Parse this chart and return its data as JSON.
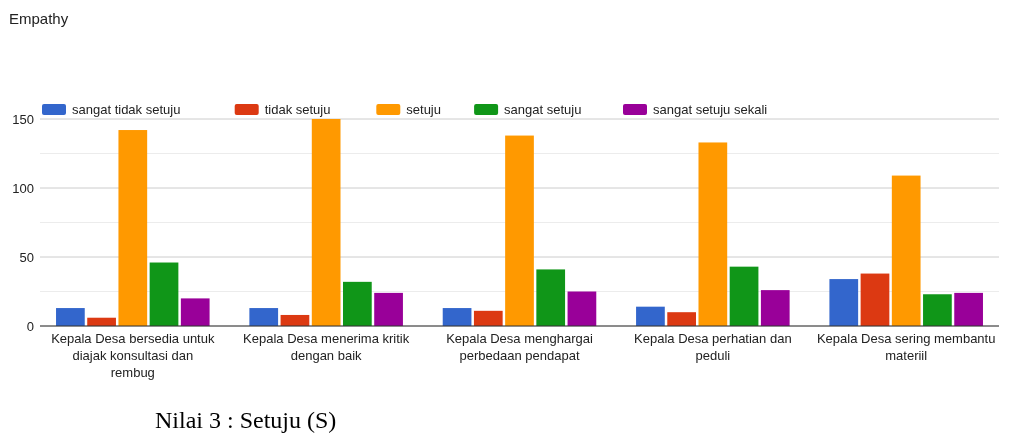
{
  "chart_data": {
    "type": "bar",
    "title": "Empathy",
    "categories": [
      "Kepala Desa bersedia untuk diajak konsultasi dan rembug",
      "Kepala Desa menerima kritik dengan baik",
      "Kepala Desa menghargai perbedaan pendapat",
      "Kepala Desa perhatian dan peduli",
      "Kepala Desa sering membantu materiil"
    ],
    "series": [
      {
        "name": "sangat tidak setuju",
        "color": "#3366cc",
        "values": [
          13,
          13,
          13,
          14,
          34
        ]
      },
      {
        "name": "tidak setuju",
        "color": "#dc3912",
        "values": [
          6,
          8,
          11,
          10,
          38
        ]
      },
      {
        "name": "setuju",
        "color": "#ff9900",
        "values": [
          142,
          150,
          138,
          133,
          109
        ]
      },
      {
        "name": "sangat setuju",
        "color": "#109618",
        "values": [
          46,
          32,
          41,
          43,
          23
        ]
      },
      {
        "name": "sangat setuju sekali",
        "color": "#990099",
        "values": [
          20,
          24,
          25,
          26,
          24
        ]
      }
    ],
    "ylim": [
      0,
      150
    ],
    "yticks": [
      0,
      {
        "value": 25,
        "label": null
      },
      50,
      {
        "value": 75,
        "label": null
      },
      100,
      {
        "value": 125,
        "label": null
      },
      150
    ],
    "grid": "y",
    "legend": "top",
    "annotations": [
      "Nilai 3 : Setuju (S)"
    ]
  }
}
